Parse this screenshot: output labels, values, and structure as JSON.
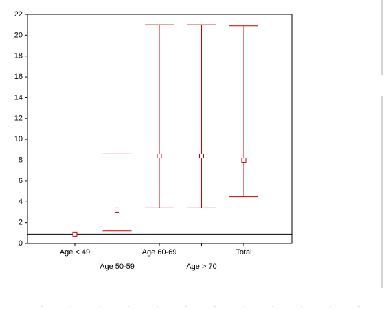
{
  "chart_data": {
    "type": "errorbar",
    "categories": [
      "Age < 49",
      "Age 50-59",
      "Age 60-69",
      "Age > 70",
      "Total"
    ],
    "values": [
      0.9,
      3.2,
      8.4,
      8.4,
      8.0
    ],
    "lower": [
      null,
      1.2,
      3.4,
      3.4,
      4.5
    ],
    "upper": [
      null,
      8.6,
      21.0,
      21.0,
      20.9
    ],
    "reference_line": 0.9,
    "color": "#cc0000",
    "ylim": [
      0,
      22
    ],
    "yticks": [
      0,
      2,
      4,
      6,
      8,
      10,
      12,
      14,
      16,
      18,
      20,
      22
    ]
  }
}
